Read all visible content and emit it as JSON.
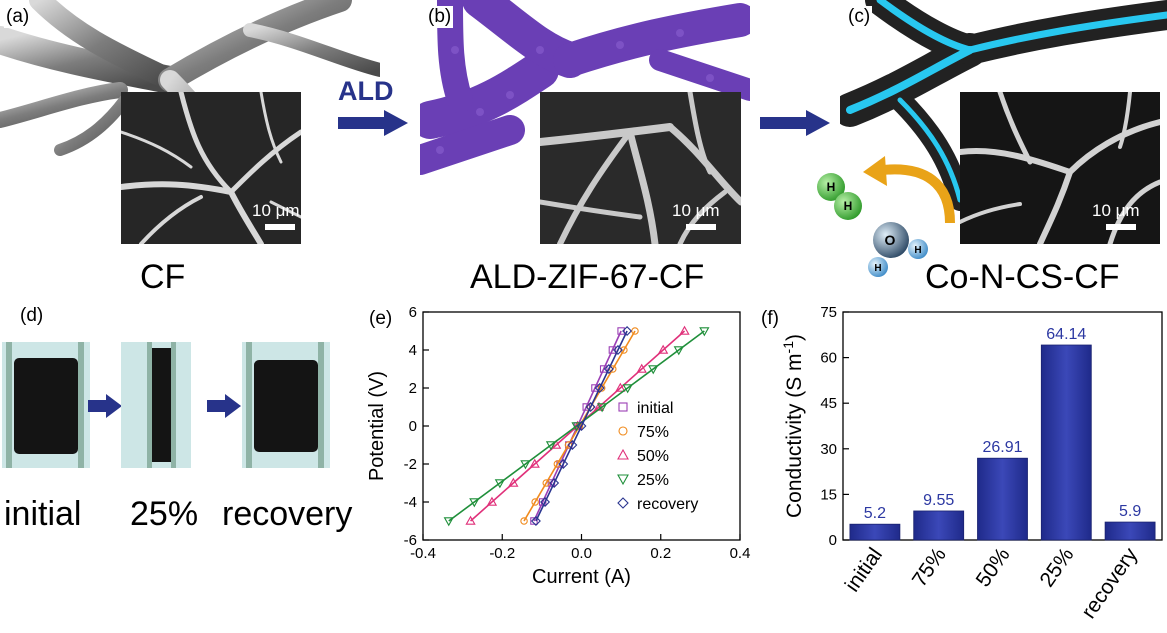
{
  "panels": {
    "a": {
      "label": "(a)",
      "caption": "CF",
      "scale": "10 μm"
    },
    "b": {
      "label": "(b)",
      "caption": "ALD-ZIF-67-CF",
      "scale": "10 μm",
      "arrow_text": "ALD"
    },
    "c": {
      "label": "(c)",
      "caption": "Co-N-CS-CF",
      "scale": "10 μm",
      "molecules": {
        "h2_atom1": "H",
        "h2_atom2": "H",
        "water_o": "O",
        "water_h1": "H",
        "water_h2": "H"
      }
    },
    "d": {
      "label": "(d)",
      "captions": [
        "initial",
        "25%",
        "recovery"
      ]
    }
  },
  "colors": {
    "arrow": "#27338a",
    "zif_purple": "#6a3fb5",
    "bar_blue": "#2c38a2",
    "cyan_glow": "#28c8f0"
  },
  "chart_data": [
    {
      "type": "line",
      "label": "(e)",
      "xlabel": "Current (A)",
      "ylabel": "Potential (V)",
      "xlim": [
        -0.4,
        0.4
      ],
      "ylim": [
        -6,
        6
      ],
      "xticks": [
        "-0.4",
        "-0.2",
        "0.0",
        "0.2",
        "0.4"
      ],
      "yticks": [
        "-6",
        "-4",
        "-2",
        "0",
        "2",
        "4",
        "6"
      ],
      "legend_position": "right",
      "series": [
        {
          "name": "initial",
          "marker": "square",
          "color": "#9b3fb5",
          "x_range": [
            -0.12,
            0.1
          ],
          "y_range": [
            -5,
            5
          ]
        },
        {
          "name": "75%",
          "marker": "circle",
          "color": "#f08a1c",
          "x_range": [
            -0.145,
            0.135
          ],
          "y_range": [
            -5,
            5
          ]
        },
        {
          "name": "50%",
          "marker": "triangle-up",
          "color": "#e0307a",
          "x_range": [
            -0.28,
            0.26
          ],
          "y_range": [
            -5,
            5
          ]
        },
        {
          "name": "25%",
          "marker": "triangle-down",
          "color": "#1f8f3a",
          "x_range": [
            -0.335,
            0.31
          ],
          "y_range": [
            -5,
            5
          ]
        },
        {
          "name": "recovery",
          "marker": "diamond",
          "color": "#2a3590",
          "x_range": [
            -0.115,
            0.115
          ],
          "y_range": [
            -5,
            5
          ]
        }
      ]
    },
    {
      "type": "bar",
      "label": "(f)",
      "categories": [
        "initial",
        "75%",
        "50%",
        "25%",
        "recovery"
      ],
      "values": [
        5.2,
        9.55,
        26.91,
        64.14,
        5.9
      ],
      "value_labels": [
        "5.2",
        "9.55",
        "26.91",
        "64.14",
        "5.9"
      ],
      "ylabel": "Conductivity (S m",
      "ylabel_sup": "-1",
      "ylabel_end": ")",
      "ylim": [
        0,
        75
      ],
      "yticks": [
        "0",
        "15",
        "30",
        "45",
        "60",
        "75"
      ]
    }
  ]
}
